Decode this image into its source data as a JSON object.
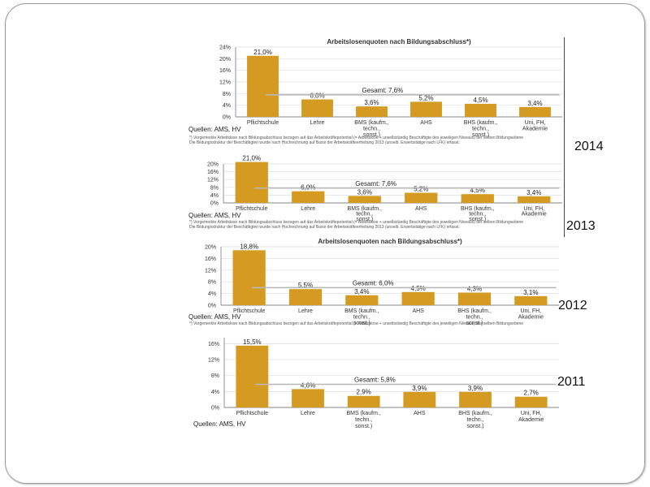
{
  "years": [
    "2014",
    "2013",
    "2012",
    "2011"
  ],
  "source_label": "Quellen: AMS, HV",
  "footnote_lines": [
    "*) Vorgemerkte Arbeitslose nach Bildungsabschluss bezogen auf das Arbeitskräftepotential (= Arbeitslose + unselbständig Beschäftigte des jeweiligen Niveaus) der selben Bildungsebene",
    "Die Bildungsstruktur der Beschäftigten wurde nach Hochrechnung auf Basis der Arbeitskräfteerhebung 2013 (unselb. Erwerbstätige nach LFK) erfasst."
  ],
  "colors": {
    "bar": "#D49A22",
    "gesamt_line": "#B8B8B8",
    "grid": "#DDDDDD",
    "axis": "#666666"
  },
  "chart_data": [
    {
      "type": "bar",
      "year": "2014",
      "title": "Arbeitslosenquoten nach Bildungsabschluss*)",
      "categories": [
        "Pflichtschule",
        "Lehre",
        "BMS (kaufm., techn., sonst.)",
        "AHS",
        "BHS (kaufm., techn., sonst.)",
        "Uni, FH, Akademie"
      ],
      "values": [
        21.0,
        6.0,
        3.6,
        5.2,
        4.5,
        3.4
      ],
      "value_labels": [
        "21,0%",
        "6,0%",
        "3,6%",
        "5,2%",
        "4,5%",
        "3,4%"
      ],
      "gesamt_value": 7.6,
      "gesamt_label": "Gesamt: 7,6%",
      "yticks": [
        0,
        4,
        8,
        12,
        16,
        20,
        24
      ],
      "ytick_labels": [
        "0%",
        "4%",
        "8%",
        "12%",
        "16%",
        "20%",
        "24%"
      ],
      "ylim": [
        0,
        24
      ]
    },
    {
      "type": "bar",
      "year": "2013",
      "title": "",
      "categories": [
        "Pflichtschule",
        "Lehre",
        "BMS (kaufm., techn., sonst.)",
        "AHS",
        "BHS (kaufm., techn., sonst.)",
        "Uni, FH, Akademie"
      ],
      "values": [
        21.0,
        6.0,
        3.6,
        5.2,
        4.5,
        3.4
      ],
      "value_labels": [
        "21,0%",
        "6,0%",
        "3,6%",
        "5,2%",
        "4,5%",
        "3,4%"
      ],
      "gesamt_value": 7.6,
      "gesamt_label": "Gesamt: 7,6%",
      "yticks": [
        0,
        4,
        8,
        12,
        16,
        20
      ],
      "ytick_labels": [
        "0%",
        "4%",
        "8%",
        "12%",
        "16%",
        "20%"
      ],
      "ylim": [
        0,
        20
      ]
    },
    {
      "type": "bar",
      "year": "2012",
      "title": "Arbeitslosenquoten nach Bildungsabschluss*)",
      "categories": [
        "Pflichtschule",
        "Lehre",
        "BMS (kaufm., techn., sonst.)",
        "AHS",
        "BHS (kaufm., techn., sonst.)",
        "Uni, FH, Akademie"
      ],
      "values": [
        18.8,
        5.5,
        3.4,
        4.5,
        4.3,
        3.1
      ],
      "value_labels": [
        "18,8%",
        "5,5%",
        "3,4%",
        "4,5%",
        "4,3%",
        "3,1%"
      ],
      "gesamt_value": 6.0,
      "gesamt_label": "Gesamt: 6,0%",
      "yticks": [
        0,
        4,
        8,
        12,
        16,
        20
      ],
      "ytick_labels": [
        "0%",
        "4%",
        "8%",
        "12%",
        "16%",
        "20%"
      ],
      "ylim": [
        0,
        20
      ]
    },
    {
      "type": "bar",
      "year": "2011",
      "title": "",
      "categories": [
        "Pflichtschule",
        "Lehre",
        "BMS (kaufm., techn., sonst.)",
        "AHS",
        "BHS (kaufm., techn., sonst.)",
        "Uni, FH, Akademie"
      ],
      "values": [
        15.5,
        4.6,
        2.9,
        3.9,
        3.9,
        2.7
      ],
      "value_labels": [
        "15,5%",
        "4,6%",
        "2,9%",
        "3,9%",
        "3,9%",
        "2,7%"
      ],
      "gesamt_value": 5.8,
      "gesamt_label": "Gesamt: 5,8%",
      "yticks": [
        0,
        4,
        8,
        12,
        16
      ],
      "ytick_labels": [
        "0%",
        "4%",
        "8%",
        "12%",
        "16%"
      ],
      "ylim": [
        0,
        17.5
      ]
    }
  ]
}
